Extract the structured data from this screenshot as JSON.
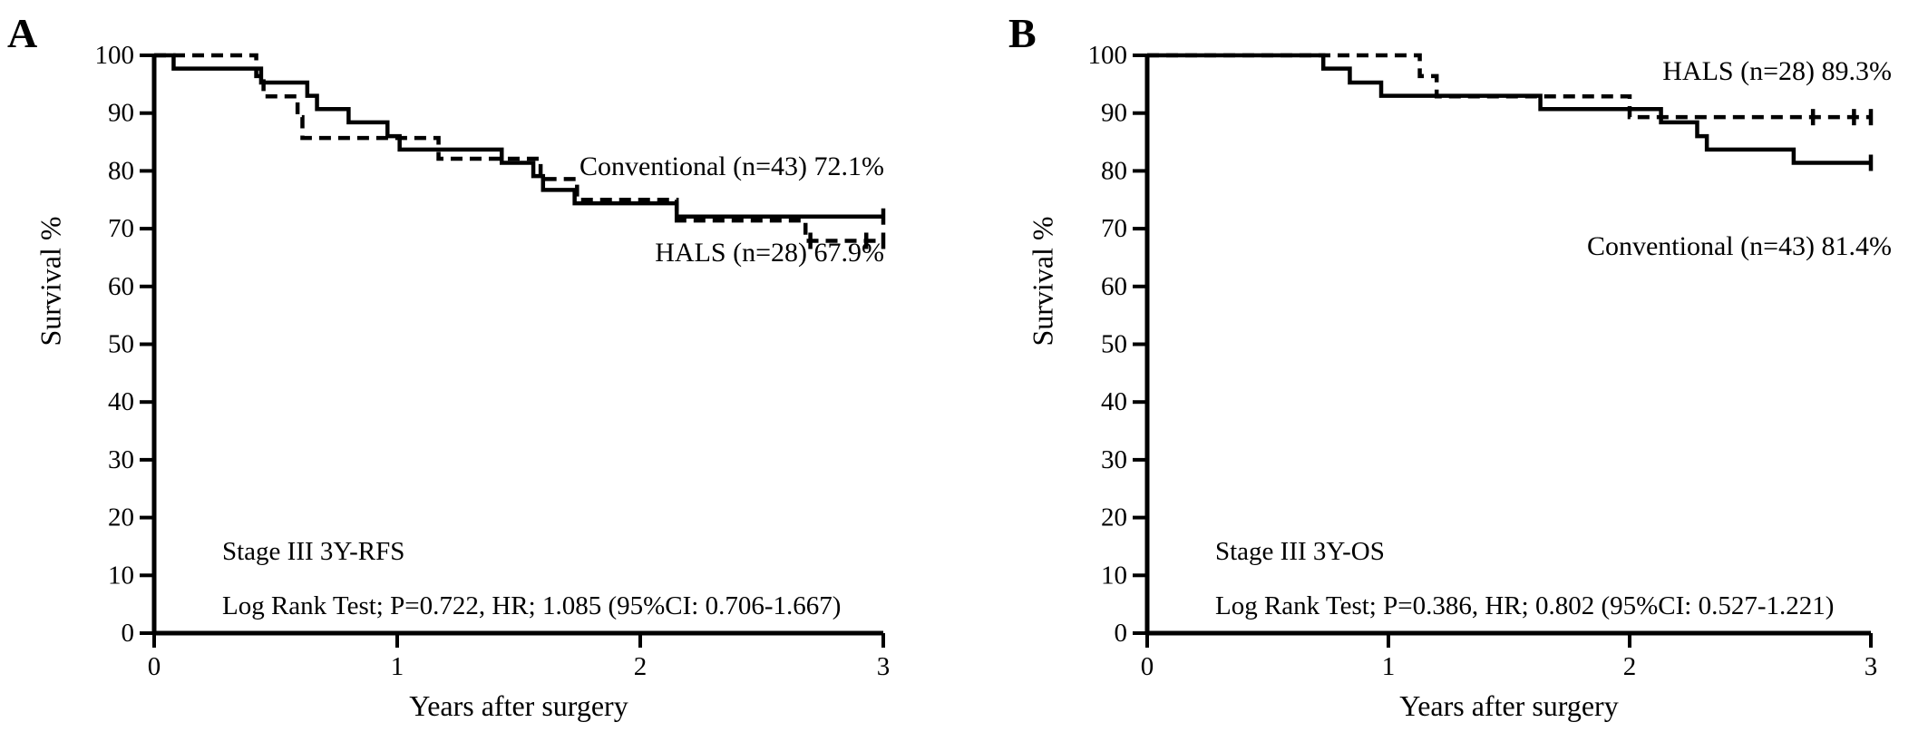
{
  "figure": {
    "background": "#ffffff",
    "ink_color": "#000000",
    "panel_letters": [
      "A",
      "B"
    ]
  },
  "chart_data": [
    {
      "type": "line",
      "panel_label": "A",
      "stage_label": "Stage III 3Y-RFS",
      "stats_label": "Log Rank Test; P=0.722, HR; 1.085 (95%CI: 0.706-1.667)",
      "xlabel": "Years after surgery",
      "ylabel": "Survival %",
      "xlim": [
        0,
        3
      ],
      "ylim": [
        0,
        100
      ],
      "xticks": [
        0,
        1,
        2,
        3
      ],
      "yticks": [
        0,
        10,
        20,
        30,
        40,
        50,
        60,
        70,
        80,
        90,
        100
      ],
      "grid": false,
      "series": [
        {
          "name": "Conventional",
          "n": 43,
          "final_pct": "72.1%",
          "label": "Conventional (n=43) 72.1%",
          "line": "solid",
          "steps": [
            [
              0,
              100
            ],
            [
              0.08,
              97.7
            ],
            [
              0.44,
              95.3
            ],
            [
              0.63,
              93.0
            ],
            [
              0.67,
              90.7
            ],
            [
              0.8,
              88.4
            ],
            [
              0.96,
              86.0
            ],
            [
              1.01,
              83.7
            ],
            [
              1.43,
              81.4
            ],
            [
              1.56,
              79.1
            ],
            [
              1.6,
              76.7
            ],
            [
              1.73,
              74.4
            ],
            [
              2.15,
              72.1
            ]
          ],
          "end_time": 3.0,
          "censor_times": [
            3.0
          ],
          "label_anchor": {
            "t": 3.0,
            "v": 79.0
          }
        },
        {
          "name": "HALS",
          "n": 28,
          "final_pct": "67.9%",
          "label": "HALS (n=28) 67.9%",
          "line": "dashed",
          "steps": [
            [
              0,
              100
            ],
            [
              0.42,
              96.4
            ],
            [
              0.45,
              92.9
            ],
            [
              0.59,
              89.3
            ],
            [
              0.61,
              85.7
            ],
            [
              1.17,
              82.1
            ],
            [
              1.59,
              78.6
            ],
            [
              1.74,
              75.0
            ],
            [
              2.15,
              71.4
            ],
            [
              2.68,
              67.9
            ]
          ],
          "end_time": 3.0,
          "censor_times": [
            2.7,
            2.93,
            3.0
          ],
          "label_anchor": {
            "t": 3.0,
            "v": 64.4
          }
        }
      ]
    },
    {
      "type": "line",
      "panel_label": "B",
      "stage_label": "Stage III 3Y-OS",
      "stats_label": "Log Rank Test; P=0.386, HR; 0.802 (95%CI: 0.527-1.221)",
      "xlabel": "Years after surgery",
      "ylabel": "Survival %",
      "xlim": [
        0,
        3
      ],
      "ylim": [
        0,
        100
      ],
      "xticks": [
        0,
        1,
        2,
        3
      ],
      "yticks": [
        0,
        10,
        20,
        30,
        40,
        50,
        60,
        70,
        80,
        90,
        100
      ],
      "grid": false,
      "series": [
        {
          "name": "Conventional",
          "n": 43,
          "final_pct": "81.4%",
          "label": "Conventional (n=43) 81.4%",
          "line": "solid",
          "steps": [
            [
              0,
              100
            ],
            [
              0.73,
              97.7
            ],
            [
              0.84,
              95.3
            ],
            [
              0.97,
              93.0
            ],
            [
              1.63,
              90.7
            ],
            [
              2.13,
              88.4
            ],
            [
              2.28,
              86.0
            ],
            [
              2.32,
              83.7
            ],
            [
              2.68,
              81.4
            ]
          ],
          "end_time": 3.0,
          "censor_times": [
            3.0
          ],
          "label_anchor": {
            "t": 3.05,
            "v": 65.1
          }
        },
        {
          "name": "HALS",
          "n": 28,
          "final_pct": "89.3%",
          "label": "HALS (n=28) 89.3%",
          "line": "dashed",
          "steps": [
            [
              0,
              100
            ],
            [
              1.13,
              96.4
            ],
            [
              1.2,
              92.9
            ],
            [
              2.0,
              89.3
            ]
          ],
          "end_time": 3.0,
          "censor_times": [
            2.76,
            2.93,
            3.0
          ],
          "label_anchor": {
            "t": 3.05,
            "v": 95.8
          }
        }
      ]
    }
  ]
}
